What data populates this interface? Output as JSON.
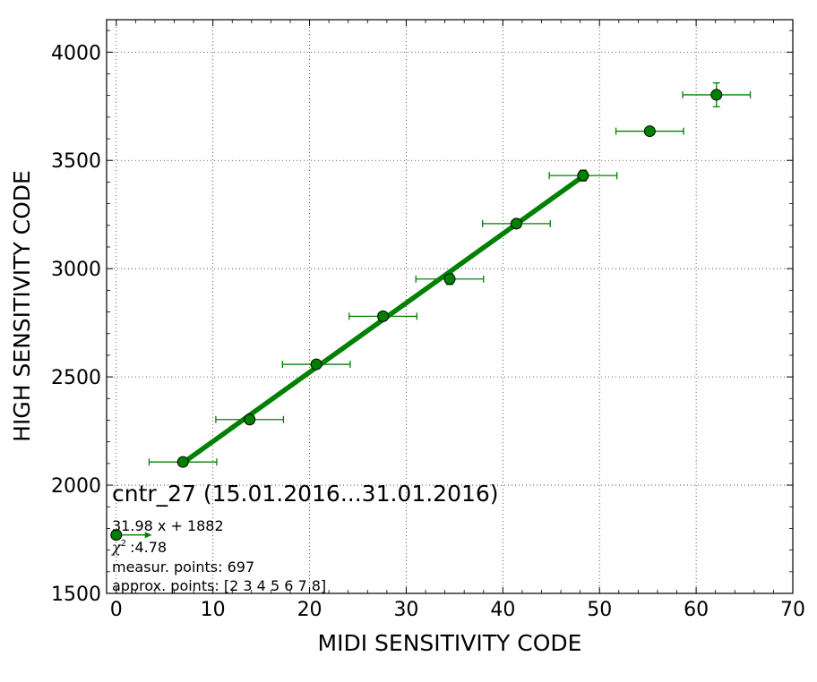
{
  "chart_data": {
    "type": "scatter",
    "xlabel": "MIDI SENSITIVITY CODE",
    "ylabel": "HIGH SENSITIVITY CODE",
    "xlim": [
      -1,
      70
    ],
    "ylim": [
      1500,
      4150
    ],
    "grid": true,
    "x_ticks": [
      "0",
      "10",
      "20",
      "30",
      "40",
      "50",
      "60",
      "70"
    ],
    "y_ticks": [
      "1500",
      "2000",
      "2500",
      "3000",
      "3500",
      "4000"
    ],
    "colors": {
      "series": "#008000",
      "marker_edge": "#000000"
    },
    "points": [
      {
        "x": 0.0,
        "y": 1770,
        "xerr": 0,
        "yerr": 0
      },
      {
        "x": 6.9,
        "y": 2107,
        "xerr": 3.5,
        "yerr": 10
      },
      {
        "x": 13.8,
        "y": 2303,
        "xerr": 3.5,
        "yerr": 12
      },
      {
        "x": 20.7,
        "y": 2558,
        "xerr": 3.5,
        "yerr": 15
      },
      {
        "x": 27.6,
        "y": 2780,
        "xerr": 3.5,
        "yerr": 20
      },
      {
        "x": 34.5,
        "y": 2952,
        "xerr": 3.5,
        "yerr": 25
      },
      {
        "x": 41.4,
        "y": 3208,
        "xerr": 3.5,
        "yerr": 15
      },
      {
        "x": 48.3,
        "y": 3430,
        "xerr": 3.5,
        "yerr": 25
      },
      {
        "x": 55.2,
        "y": 3635,
        "xerr": 3.5,
        "yerr": 15
      },
      {
        "x": 62.1,
        "y": 3803,
        "xerr": 3.5,
        "yerr": 55
      }
    ],
    "fit": {
      "slope": 31.98,
      "intercept": 1882,
      "x_start": 6.9,
      "x_end": 48.3
    },
    "arrow": {
      "x_start": 0.0,
      "x_end": 3.7,
      "y": 1770
    },
    "annotation": {
      "title": "cntr_27 (15.01.2016...31.01.2016)",
      "equation": "31.98 x + 1882",
      "chi_symbol": "χ",
      "chi_exp": "2",
      "chi_value": ":4.78",
      "measur_points": "measur. points: 697",
      "approx_points": "approx. points: [2 3 4 5 6 7 8]"
    }
  }
}
